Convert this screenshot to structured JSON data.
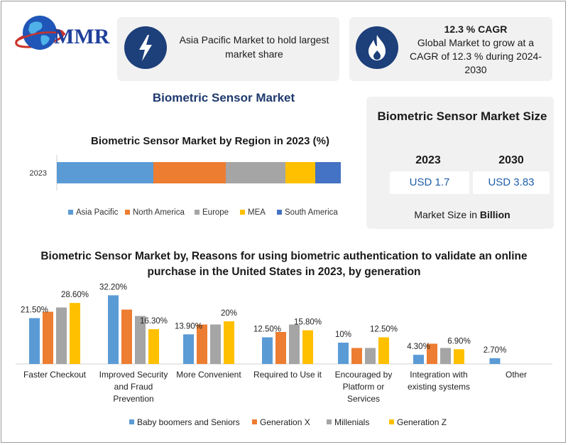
{
  "logo": {
    "text": "MMR",
    "icon": "globe-icon"
  },
  "highlights": [
    {
      "icon": "lightning-icon",
      "title": "",
      "text": "Asia Pacific Market to hold largest market share"
    },
    {
      "icon": "flame-icon",
      "title": "12.3 % CAGR",
      "text": "Global Market to grow at a CAGR of 12.3 % during 2024-2030"
    }
  ],
  "main_title": "Biometric Sensor Market",
  "market_size": {
    "title": "Biometric Sensor Market Size",
    "years": [
      {
        "year": "2023",
        "value": "USD 1.7"
      },
      {
        "year": "2030",
        "value": "USD 3.83"
      }
    ],
    "note_prefix": "Market Size in ",
    "note_bold": "Billion"
  },
  "colors": {
    "blue": "#5b9bd5",
    "orange": "#ed7d31",
    "gray": "#a5a5a5",
    "yellow": "#ffc000",
    "darkblue": "#4472c4",
    "navy": "#1d3f7a"
  },
  "chart_data": [
    {
      "type": "bar",
      "orientation": "horizontal-stacked",
      "title": "Biometric Sensor Market by Region in 2023 (%)",
      "categories": [
        "2023"
      ],
      "series": [
        {
          "name": "Asia Pacific",
          "values": [
            34
          ],
          "color": "#5b9bd5"
        },
        {
          "name": "North America",
          "values": [
            25.5
          ],
          "color": "#ed7d31"
        },
        {
          "name": "Europe",
          "values": [
            21
          ],
          "color": "#a5a5a5"
        },
        {
          "name": "MEA",
          "values": [
            10.5
          ],
          "color": "#ffc000"
        },
        {
          "name": "South America",
          "values": [
            9
          ],
          "color": "#4472c4"
        }
      ],
      "legend": "bottom"
    },
    {
      "type": "bar",
      "title": "Biometric Sensor Market by, Reasons for using biometric authentication to validate an online purchase in the United States in 2023, by generation",
      "categories": [
        "Faster Checkout",
        "Improved Security and Fraud Prevention",
        "More Convenient",
        "Required to Use it",
        "Encouraged by Platform or Services",
        "Integration with existing systems",
        "Other"
      ],
      "category_lines": [
        [
          "Faster Checkout"
        ],
        [
          "Improved Security",
          "and Fraud",
          "Prevention"
        ],
        [
          "More Convenient"
        ],
        [
          "Required to Use it"
        ],
        [
          "Encouraged by",
          "Platform or",
          "Services"
        ],
        [
          "Integration with",
          "existing systems"
        ],
        [
          "Other"
        ]
      ],
      "series": [
        {
          "name": "Baby boomers and Seniors",
          "color": "#5b9bd5",
          "values": [
            21.5,
            32.2,
            13.9,
            12.5,
            10,
            4.3,
            2.7
          ]
        },
        {
          "name": "Generation X",
          "color": "#ed7d31",
          "values": [
            24.5,
            25.5,
            18.5,
            15,
            7.5,
            9.5,
            null
          ]
        },
        {
          "name": "Millenials",
          "color": "#a5a5a5",
          "values": [
            26.5,
            22.5,
            18.5,
            18.5,
            7.5,
            7.5,
            null
          ]
        },
        {
          "name": "Generation Z",
          "color": "#ffc000",
          "values": [
            28.6,
            16.3,
            20,
            15.8,
            12.5,
            6.9,
            null
          ]
        }
      ],
      "data_labels": [
        {
          "category": 0,
          "series": 0,
          "text": "21.50%"
        },
        {
          "category": 0,
          "series": 3,
          "text": "28.60%"
        },
        {
          "category": 1,
          "series": 0,
          "text": "32.20%"
        },
        {
          "category": 1,
          "series": 3,
          "text": "16.30%"
        },
        {
          "category": 2,
          "series": 0,
          "text": "13.90%"
        },
        {
          "category": 2,
          "series": 3,
          "text": "20%"
        },
        {
          "category": 3,
          "series": 0,
          "text": "12.50%"
        },
        {
          "category": 3,
          "series": 3,
          "text": "15.80%"
        },
        {
          "category": 4,
          "series": 0,
          "text": "10%"
        },
        {
          "category": 4,
          "series": 3,
          "text": "12.50%"
        },
        {
          "category": 5,
          "series": 0,
          "text": "4.30%"
        },
        {
          "category": 5,
          "series": 3,
          "text": "6.90%"
        },
        {
          "category": 6,
          "series": 0,
          "text": "2.70%"
        }
      ],
      "legend": "bottom"
    }
  ]
}
